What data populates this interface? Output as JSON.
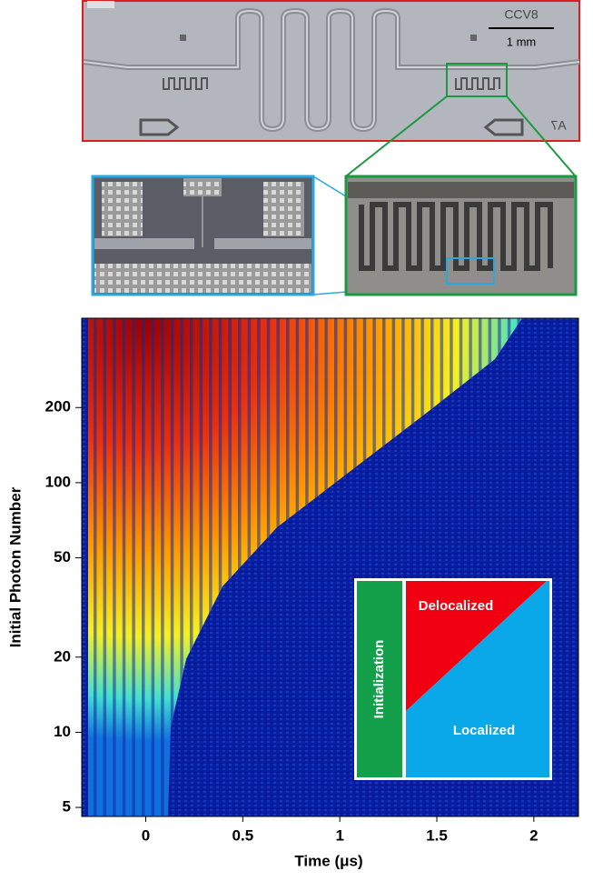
{
  "micrograph": {
    "chip_label": "CCV8",
    "scale_bar": "1 mm",
    "corner_label": "A7"
  },
  "chart_data": {
    "type": "heatmap",
    "xlabel": "Time (μs)",
    "ylabel": "Initial Photon Number",
    "xlim": [
      -0.33,
      2.23
    ],
    "xticks": [
      0,
      0.5,
      1,
      1.5,
      2
    ],
    "ylim": [
      4.6,
      456
    ],
    "yticks": [
      5,
      10,
      20,
      50,
      100,
      200
    ],
    "ylog": true,
    "annotations": {
      "left": "Initialization",
      "upper": "Delocalized",
      "lower": "Localized"
    }
  }
}
